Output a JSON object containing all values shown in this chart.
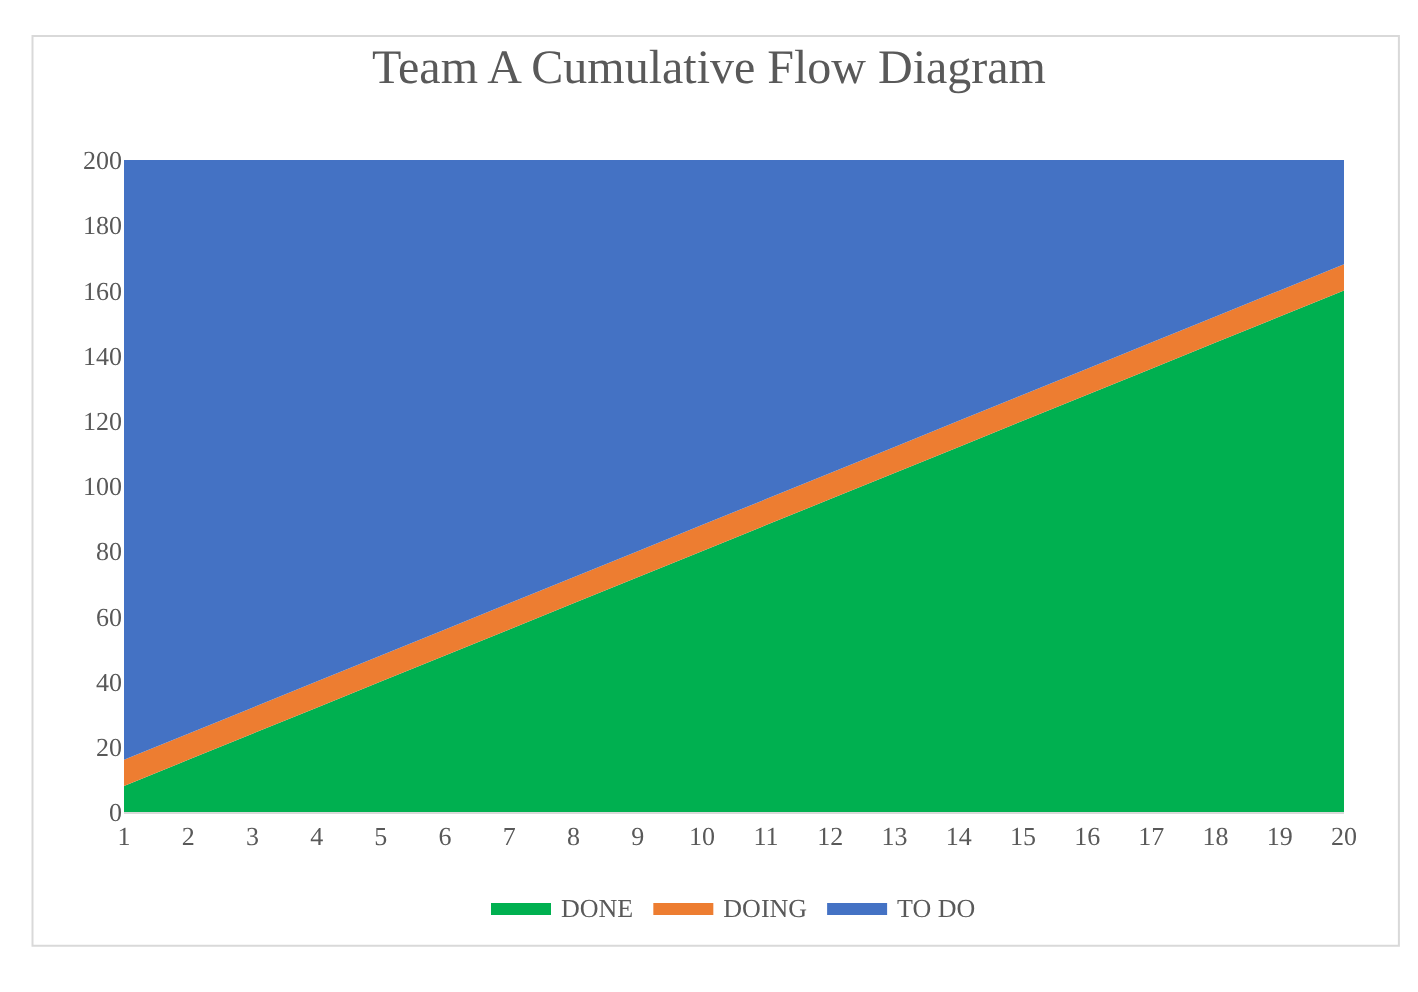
{
  "chart_data": {
    "type": "area",
    "title": "Team A Cumulative Flow Diagram",
    "stacked": true,
    "x": [
      1,
      2,
      3,
      4,
      5,
      6,
      7,
      8,
      9,
      10,
      11,
      12,
      13,
      14,
      15,
      16,
      17,
      18,
      19,
      20
    ],
    "series": [
      {
        "name": "DONE",
        "color": "#00b050",
        "values": [
          8,
          16,
          24,
          32,
          40,
          48,
          56,
          64,
          72,
          80,
          88,
          96,
          104,
          112,
          120,
          128,
          136,
          144,
          152,
          160
        ]
      },
      {
        "name": "DOING",
        "color": "#ed7d31",
        "values": [
          8,
          8,
          8,
          8,
          8,
          8,
          8,
          8,
          8,
          8,
          8,
          8,
          8,
          8,
          8,
          8,
          8,
          8,
          8,
          8
        ]
      },
      {
        "name": "TO DO",
        "color": "#4472c4",
        "values": [
          184,
          176,
          168,
          160,
          152,
          144,
          136,
          128,
          120,
          112,
          104,
          96,
          88,
          80,
          72,
          64,
          56,
          48,
          40,
          32
        ]
      }
    ],
    "xlim": [
      1,
      20
    ],
    "xticks": [
      1,
      2,
      3,
      4,
      5,
      6,
      7,
      8,
      9,
      10,
      11,
      12,
      13,
      14,
      15,
      16,
      17,
      18,
      19,
      20
    ],
    "ylim": [
      0,
      200
    ],
    "yticks": [
      0,
      20,
      40,
      60,
      80,
      100,
      120,
      140,
      160,
      180,
      200
    ],
    "legend": "bottom"
  }
}
